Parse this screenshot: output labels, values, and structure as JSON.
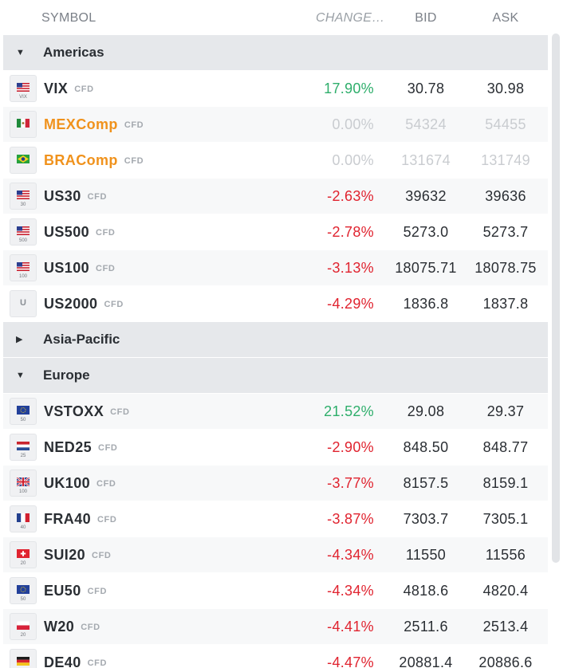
{
  "header": {
    "symbol": "SYMBOL",
    "change": "CHANGE(...",
    "bid": "BID",
    "ask": "ASK"
  },
  "colors": {
    "positive": "#2eae6b",
    "negative": "#e0232f",
    "closed_symbol": "#f0921c",
    "group_bg": "#e6e8eb"
  },
  "rows": [
    {
      "type": "group",
      "name": "Americas",
      "expanded": true
    },
    {
      "type": "quote",
      "symbol": "VIX",
      "tag": "CFD",
      "flag": "us",
      "flag_sub": "VIX",
      "change": "17.90%",
      "dir": "pos",
      "bid": "30.78",
      "ask": "30.98",
      "closed": false
    },
    {
      "type": "quote",
      "symbol": "MEXComp",
      "tag": "CFD",
      "flag": "mx",
      "flag_sub": "",
      "change": "0.00%",
      "dir": "flat",
      "bid": "54324",
      "ask": "54455",
      "closed": true
    },
    {
      "type": "quote",
      "symbol": "BRAComp",
      "tag": "CFD",
      "flag": "br",
      "flag_sub": "",
      "change": "0.00%",
      "dir": "flat",
      "bid": "131674",
      "ask": "131749",
      "closed": true
    },
    {
      "type": "quote",
      "symbol": "US30",
      "tag": "CFD",
      "flag": "us",
      "flag_sub": "30",
      "change": "-2.63%",
      "dir": "neg",
      "bid": "39632",
      "ask": "39636",
      "closed": false
    },
    {
      "type": "quote",
      "symbol": "US500",
      "tag": "CFD",
      "flag": "us",
      "flag_sub": "500",
      "change": "-2.78%",
      "dir": "neg",
      "bid": "5273.0",
      "ask": "5273.7",
      "closed": false
    },
    {
      "type": "quote",
      "symbol": "US100",
      "tag": "CFD",
      "flag": "us",
      "flag_sub": "100",
      "change": "-3.13%",
      "dir": "neg",
      "bid": "18075.71",
      "ask": "18078.75",
      "closed": false
    },
    {
      "type": "quote",
      "symbol": "US2000",
      "tag": "CFD",
      "flag": "letter",
      "flag_letter": "U",
      "flag_sub": "",
      "change": "-4.29%",
      "dir": "neg",
      "bid": "1836.8",
      "ask": "1837.8",
      "closed": false
    },
    {
      "type": "group",
      "name": "Asia-Pacific",
      "expanded": false
    },
    {
      "type": "group",
      "name": "Europe",
      "expanded": true
    },
    {
      "type": "quote",
      "symbol": "VSTOXX",
      "tag": "CFD",
      "flag": "eu",
      "flag_sub": "50",
      "change": "21.52%",
      "dir": "pos",
      "bid": "29.08",
      "ask": "29.37",
      "closed": false
    },
    {
      "type": "quote",
      "symbol": "NED25",
      "tag": "CFD",
      "flag": "nl",
      "flag_sub": "25",
      "change": "-2.90%",
      "dir": "neg",
      "bid": "848.50",
      "ask": "848.77",
      "closed": false
    },
    {
      "type": "quote",
      "symbol": "UK100",
      "tag": "CFD",
      "flag": "uk",
      "flag_sub": "100",
      "change": "-3.77%",
      "dir": "neg",
      "bid": "8157.5",
      "ask": "8159.1",
      "closed": false
    },
    {
      "type": "quote",
      "symbol": "FRA40",
      "tag": "CFD",
      "flag": "fr",
      "flag_sub": "40",
      "change": "-3.87%",
      "dir": "neg",
      "bid": "7303.7",
      "ask": "7305.1",
      "closed": false
    },
    {
      "type": "quote",
      "symbol": "SUI20",
      "tag": "CFD",
      "flag": "ch",
      "flag_sub": "20",
      "change": "-4.34%",
      "dir": "neg",
      "bid": "11550",
      "ask": "11556",
      "closed": false
    },
    {
      "type": "quote",
      "symbol": "EU50",
      "tag": "CFD",
      "flag": "eu",
      "flag_sub": "50",
      "change": "-4.34%",
      "dir": "neg",
      "bid": "4818.6",
      "ask": "4820.4",
      "closed": false
    },
    {
      "type": "quote",
      "symbol": "W20",
      "tag": "CFD",
      "flag": "pl",
      "flag_sub": "20",
      "change": "-4.41%",
      "dir": "neg",
      "bid": "2511.6",
      "ask": "2513.4",
      "closed": false
    },
    {
      "type": "quote",
      "symbol": "DE40",
      "tag": "CFD",
      "flag": "de",
      "flag_sub": "",
      "change": "-4.47%",
      "dir": "neg",
      "bid": "20881.4",
      "ask": "20886.6",
      "closed": false
    }
  ]
}
